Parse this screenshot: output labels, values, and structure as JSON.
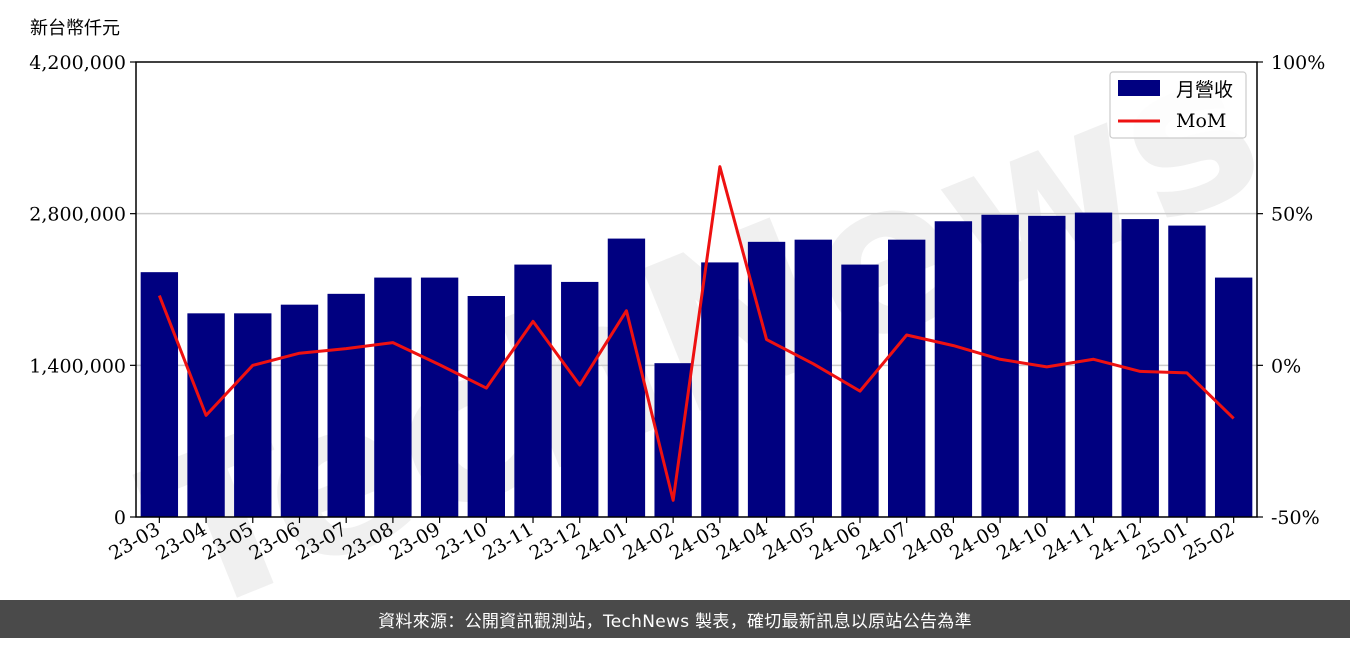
{
  "chart_data": {
    "type": "bar",
    "unit_label": "新台幣仟元",
    "categories": [
      "23-03",
      "23-04",
      "23-05",
      "23-06",
      "23-07",
      "23-08",
      "23-09",
      "23-10",
      "23-11",
      "23-12",
      "24-01",
      "24-02",
      "24-03",
      "24-04",
      "24-05",
      "24-06",
      "24-07",
      "24-08",
      "24-09",
      "24-10",
      "24-11",
      "24-12",
      "25-01",
      "25-02"
    ],
    "series": [
      {
        "name": "月營收",
        "type": "bar",
        "axis": "left",
        "color": "#000080",
        "values": [
          2260000,
          1880000,
          1880000,
          1960000,
          2060000,
          2210000,
          2210000,
          2040000,
          2330000,
          2170000,
          2570000,
          1420000,
          2350000,
          2540000,
          2560000,
          2330000,
          2560000,
          2730000,
          2790000,
          2780000,
          2810000,
          2750000,
          2690000,
          2210000
        ]
      },
      {
        "name": "MoM",
        "type": "line",
        "axis": "right",
        "color": "#ee1111",
        "values": [
          23.0,
          -16.5,
          0.0,
          4.0,
          5.5,
          7.5,
          0.2,
          -7.5,
          14.5,
          -6.5,
          18.0,
          -44.5,
          65.5,
          8.5,
          0.5,
          -8.5,
          10.0,
          6.5,
          2.0,
          -0.5,
          2.0,
          -2.0,
          -2.5,
          -17.5
        ]
      }
    ],
    "y_left": {
      "range": [
        0,
        4200000
      ],
      "ticks": [
        "0",
        "1,400,000",
        "2,800,000",
        "4,200,000"
      ],
      "tick_values": [
        0,
        1400000,
        2800000,
        4200000
      ]
    },
    "y_right": {
      "range": [
        -50,
        100
      ],
      "ticks": [
        "-50%",
        "0%",
        "50%",
        "100%"
      ],
      "tick_values": [
        -50,
        0,
        50,
        100
      ]
    },
    "grid": true,
    "legend_position": "top-right"
  },
  "watermark": "TechNews",
  "footer": "資料來源：公開資訊觀測站，TechNews 製表，確切最新訊息以原站公告為準"
}
